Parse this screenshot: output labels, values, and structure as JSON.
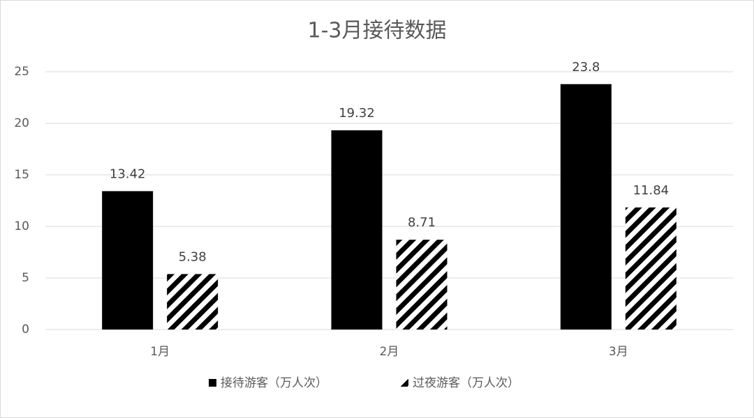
{
  "chart_data": {
    "type": "bar",
    "title": "1-3月接待数据",
    "categories": [
      "1月",
      "2月",
      "3月"
    ],
    "series": [
      {
        "name": "接待游客（万人次）",
        "color": "#000000",
        "pattern": "solid",
        "values": [
          13.42,
          19.32,
          23.8
        ]
      },
      {
        "name": "过夜游客（万人次）",
        "color": "#000000",
        "pattern": "hatch",
        "values": [
          5.38,
          8.71,
          11.84
        ]
      }
    ],
    "ylim": [
      0,
      25
    ],
    "yticks": [
      0,
      5,
      10,
      15,
      20,
      25
    ],
    "grid": true,
    "legend": "bottom"
  }
}
